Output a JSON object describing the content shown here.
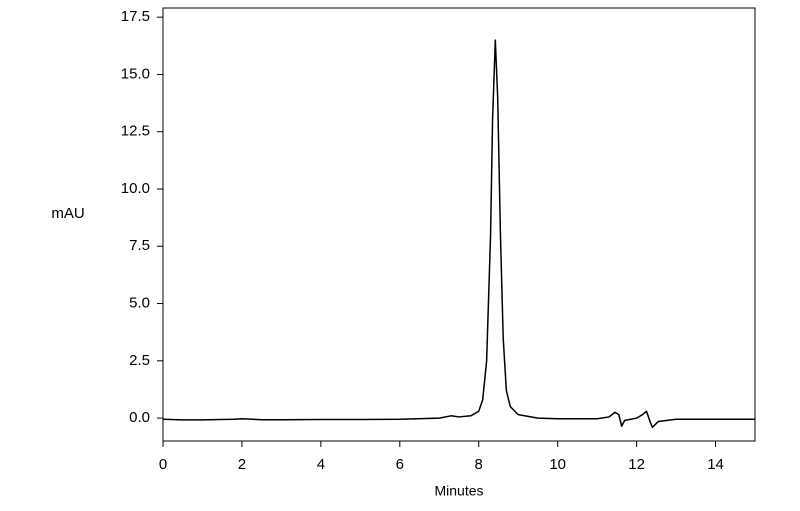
{
  "chart_data": {
    "type": "line",
    "x_label": "Minutes",
    "y_label": "mAU",
    "x": [
      0,
      0.5,
      1,
      1.8,
      2,
      2.5,
      3,
      4,
      5,
      6,
      7,
      7.3,
      7.5,
      7.8,
      8.0,
      8.1,
      8.2,
      8.3,
      8.35,
      8.42,
      8.48,
      8.55,
      8.62,
      8.7,
      8.8,
      9.0,
      9.5,
      10,
      10.5,
      11,
      11.3,
      11.45,
      11.55,
      11.62,
      11.7,
      12,
      12.15,
      12.25,
      12.35,
      12.4,
      12.55,
      13,
      14,
      15
    ],
    "series": [
      {
        "color": "#000000",
        "values": [
          -0.05,
          -0.08,
          -0.08,
          -0.05,
          -0.03,
          -0.07,
          -0.07,
          -0.06,
          -0.06,
          -0.05,
          0.0,
          0.1,
          0.05,
          0.1,
          0.3,
          0.8,
          2.5,
          8,
          13,
          16.5,
          14,
          8,
          3.5,
          1.2,
          0.5,
          0.15,
          0.0,
          -0.03,
          -0.03,
          -0.03,
          0.05,
          0.25,
          0.15,
          -0.35,
          -0.1,
          0.0,
          0.15,
          0.3,
          -0.2,
          -0.4,
          -0.15,
          -0.05,
          -0.05,
          -0.05
        ]
      }
    ],
    "xlim": [
      0,
      15
    ],
    "xticks": [
      0,
      2,
      4,
      6,
      8,
      10,
      12,
      14
    ],
    "ylim": [
      -1,
      17.9
    ],
    "yticks": [
      {
        "value": 0,
        "label": "0.0"
      },
      {
        "value": 2.5,
        "label": "2.5"
      },
      {
        "value": 5,
        "label": "5.0"
      },
      {
        "value": 7.5,
        "label": "7.5"
      },
      {
        "value": 10,
        "label": "10.0"
      },
      {
        "value": 12.5,
        "label": "12.5"
      },
      {
        "value": 15,
        "label": "15.0"
      },
      {
        "value": 17.5,
        "label": "17.5"
      }
    ]
  }
}
